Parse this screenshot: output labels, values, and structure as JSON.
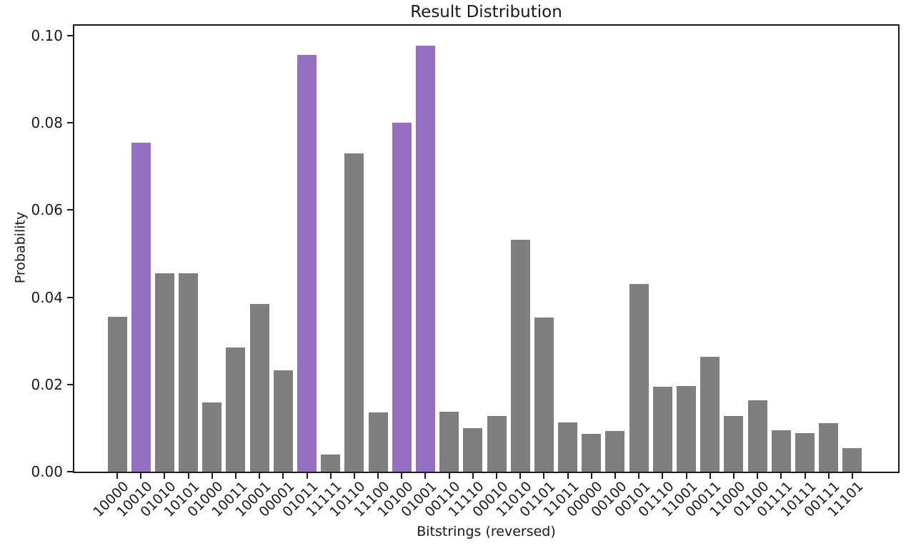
{
  "chart_data": {
    "type": "bar",
    "title": "Result Distribution",
    "xlabel": "Bitstrings (reversed)",
    "ylabel": "Probability",
    "categories": [
      "10000",
      "10010",
      "01010",
      "10101",
      "01000",
      "10011",
      "10001",
      "00001",
      "01011",
      "11111",
      "10110",
      "11100",
      "10100",
      "01001",
      "00110",
      "11110",
      "00010",
      "11010",
      "01101",
      "11011",
      "00000",
      "00100",
      "00101",
      "01110",
      "11001",
      "00011",
      "11000",
      "01100",
      "01111",
      "10111",
      "00111",
      "11101"
    ],
    "values": [
      0.0355,
      0.0755,
      0.0455,
      0.0455,
      0.0158,
      0.0285,
      0.0385,
      0.0233,
      0.0956,
      0.004,
      0.073,
      0.0136,
      0.08,
      0.0977,
      0.0138,
      0.01,
      0.0127,
      0.0532,
      0.0354,
      0.0113,
      0.0087,
      0.0093,
      0.0431,
      0.0194,
      0.0197,
      0.0263,
      0.0127,
      0.0163,
      0.0095,
      0.0089,
      0.0112,
      0.0054
    ],
    "highlighted_categories": [
      "10010",
      "01011",
      "10100",
      "01001"
    ],
    "ytick_labels": [
      "0.00",
      "0.02",
      "0.04",
      "0.06",
      "0.08",
      "0.10"
    ],
    "ylim": [
      0,
      0.1023
    ],
    "grid": false,
    "legend_position": "none",
    "x_tick_rotation_deg": 45,
    "colors": {
      "bar_default": "#7f7f7f",
      "bar_highlight": "#9670c0",
      "axis": "#1c1c1c",
      "text": "#1a1a1a",
      "background": "#ffffff"
    }
  }
}
